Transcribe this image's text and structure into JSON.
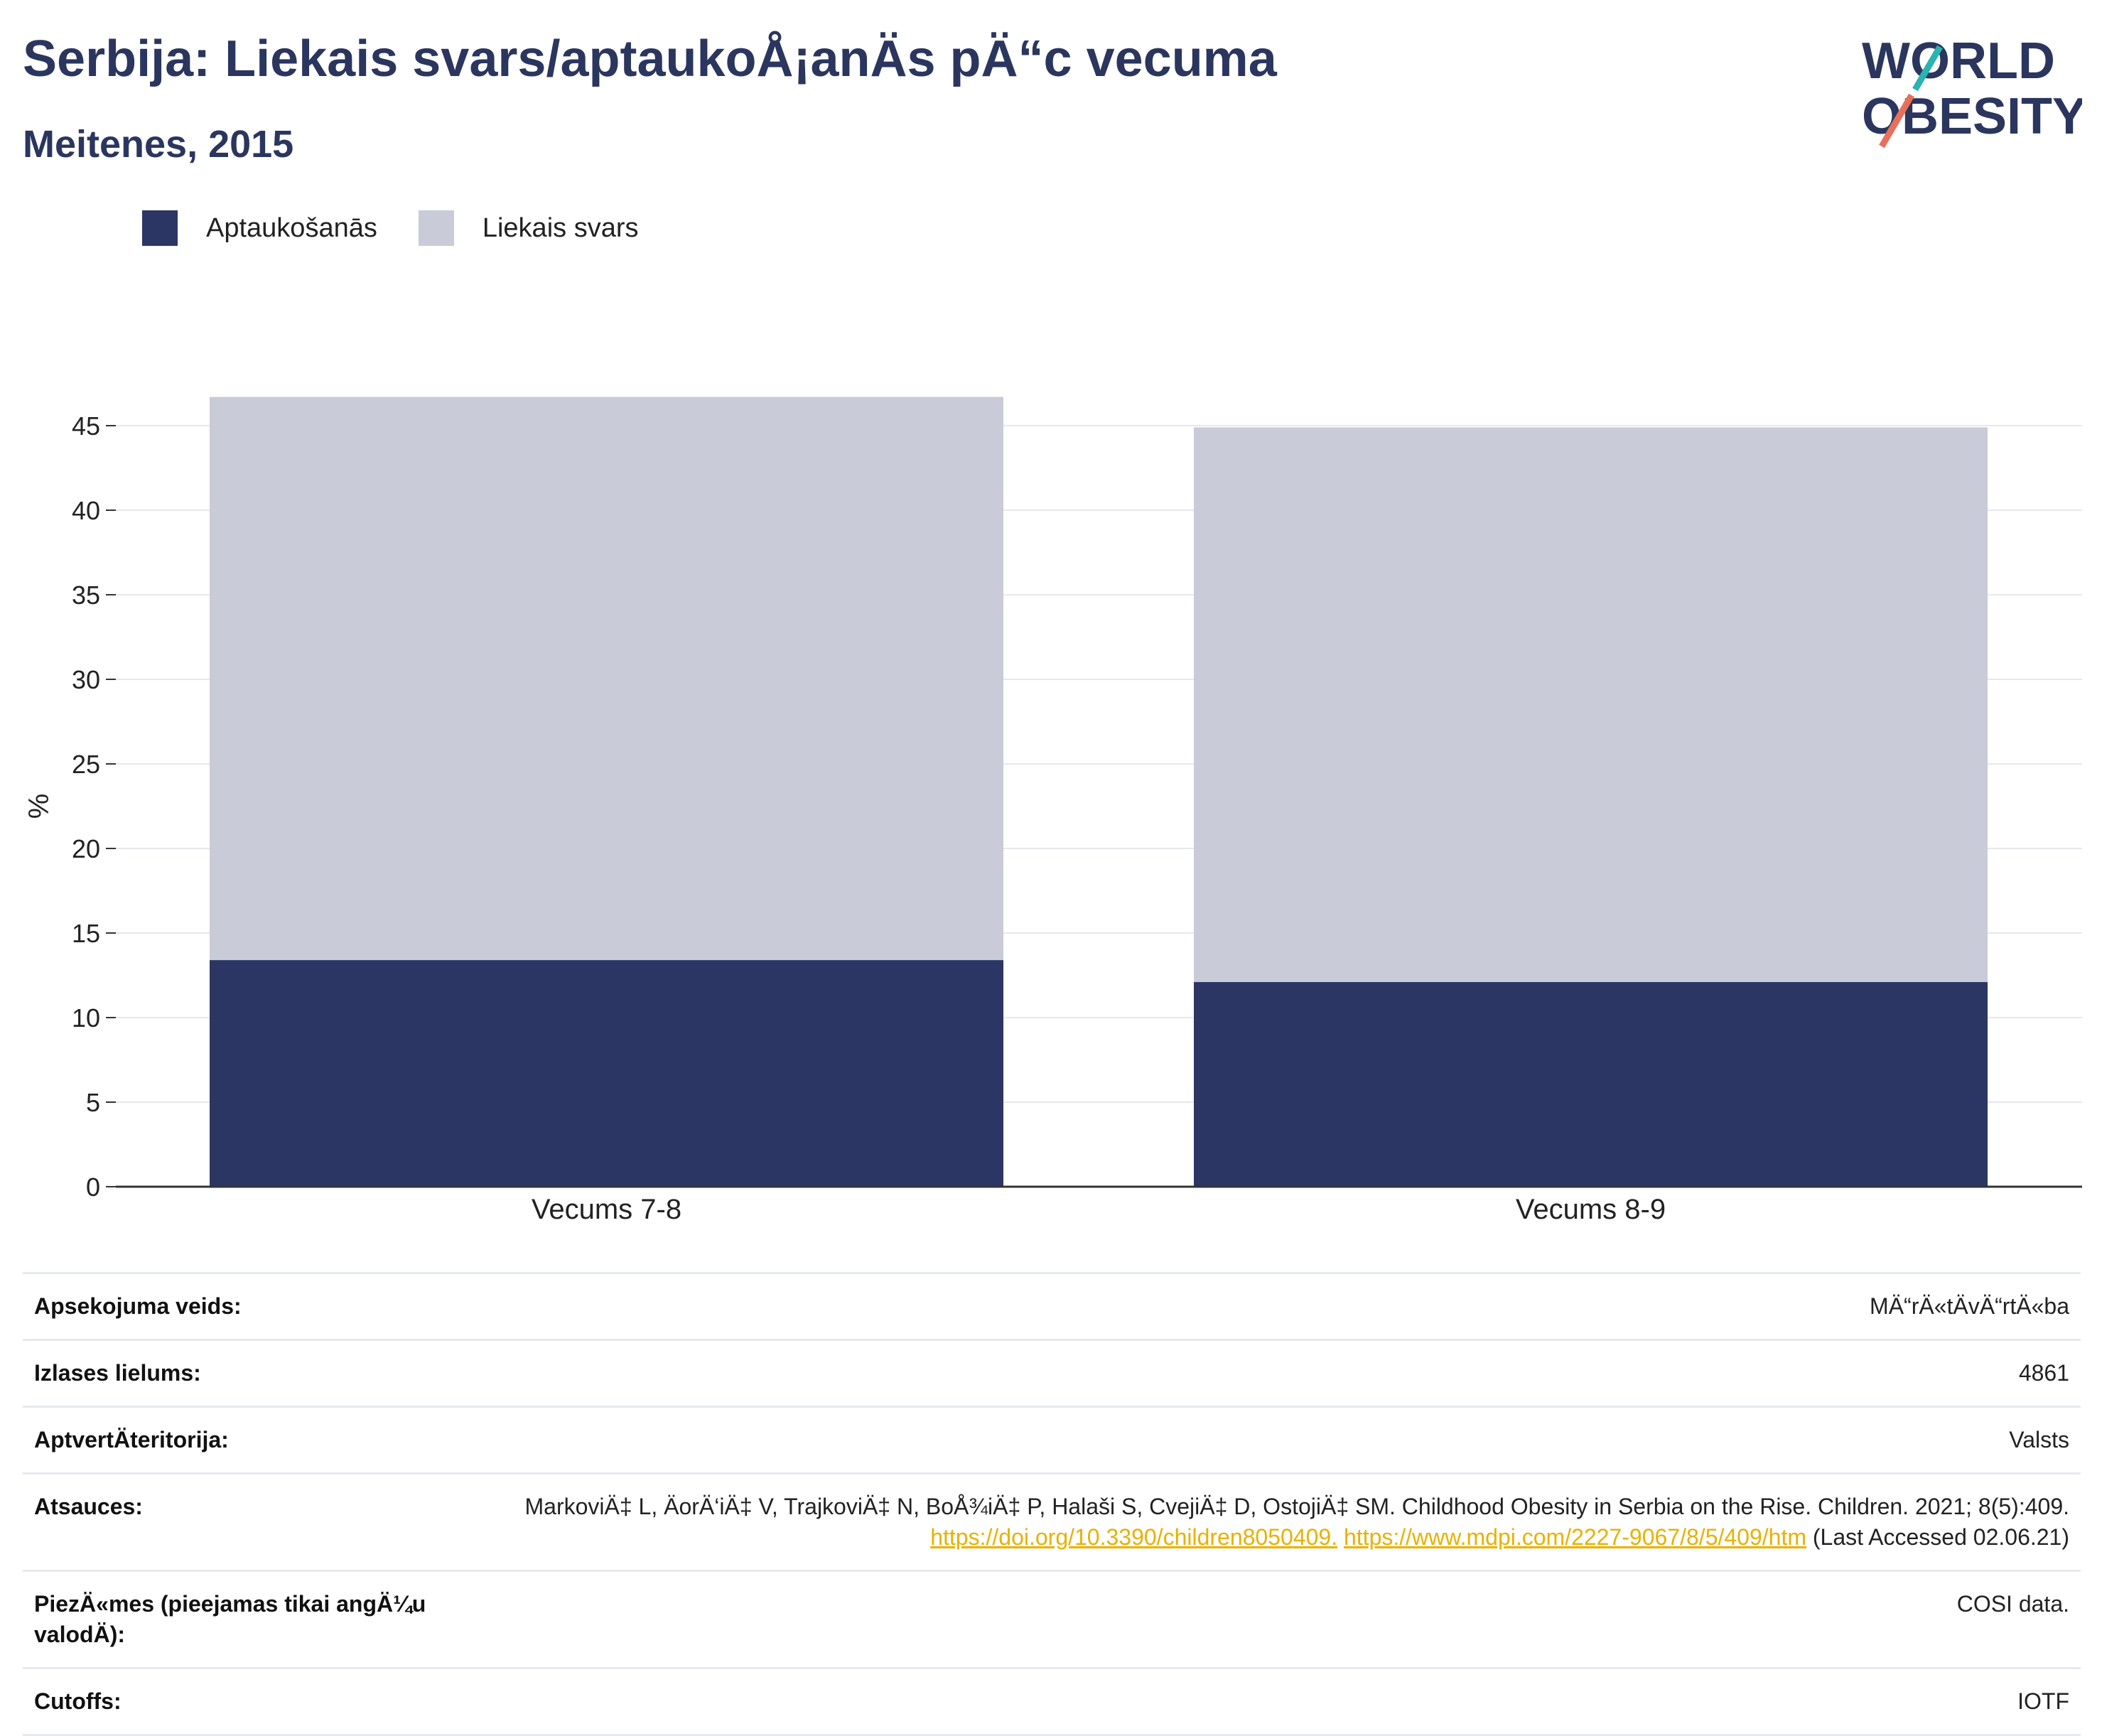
{
  "header": {
    "title": "Serbija: Liekais svars/aptaukoÅ¡anÄs pÄ“c vecuma",
    "subtitle": "Meitenes, 2015"
  },
  "logo": {
    "line1": "WORLD",
    "line2": "OBESITY"
  },
  "legend": {
    "items": [
      {
        "label": "Aptaukošanās",
        "color": "#2b3664"
      },
      {
        "label": "Liekais svars",
        "color": "#c9cbd8"
      }
    ]
  },
  "chart_data": {
    "type": "bar",
    "stacked": true,
    "categories": [
      "Vecums 7-8",
      "Vecums 8-9"
    ],
    "series": [
      {
        "name": "Aptaukošanās",
        "values": [
          13.4,
          12.1
        ],
        "color": "#2b3664"
      },
      {
        "name": "Liekais svars",
        "values": [
          33.3,
          32.8
        ],
        "color": "#c9cbd8"
      }
    ],
    "ylabel": "%",
    "ylim": [
      0,
      45
    ],
    "yticks": [
      0,
      5,
      10,
      15,
      20,
      25,
      30,
      35,
      40,
      45
    ],
    "grid": true
  },
  "meta": {
    "rows": [
      {
        "label": "Apsekojuma veids:",
        "value": "MÄ“rÄ«tÄvÄ“rtÄ«ba"
      },
      {
        "label": "Izlases lielums:",
        "value": "4861"
      },
      {
        "label": "AptvertÄteritorija:",
        "value": "Valsts"
      },
      {
        "label": "Atsauces:",
        "value_pre": "MarkoviÄ‡ L, ÄorÄ‘iÄ‡ V, TrajkoviÄ‡ N, BoÅ¾iÄ‡ P, Halaši S, CvejiÄ‡ D, OstojiÄ‡ SM. Childhood Obesity in Serbia on the Rise. Children. 2021; 8(5):409. ",
        "link1": "https://doi.org/10.3390/children8050409.",
        "link2": "https://www.mdpi.com/2227-9067/8/5/409/htm",
        "value_post": " (Last Accessed 02.06.21)"
      },
      {
        "label": "PiezÄ«mes (pieejamas tikai angÄ¼u valodÄ):",
        "value": "COSI data."
      },
      {
        "label": "Cutoffs:",
        "value": "IOTF"
      }
    ]
  }
}
